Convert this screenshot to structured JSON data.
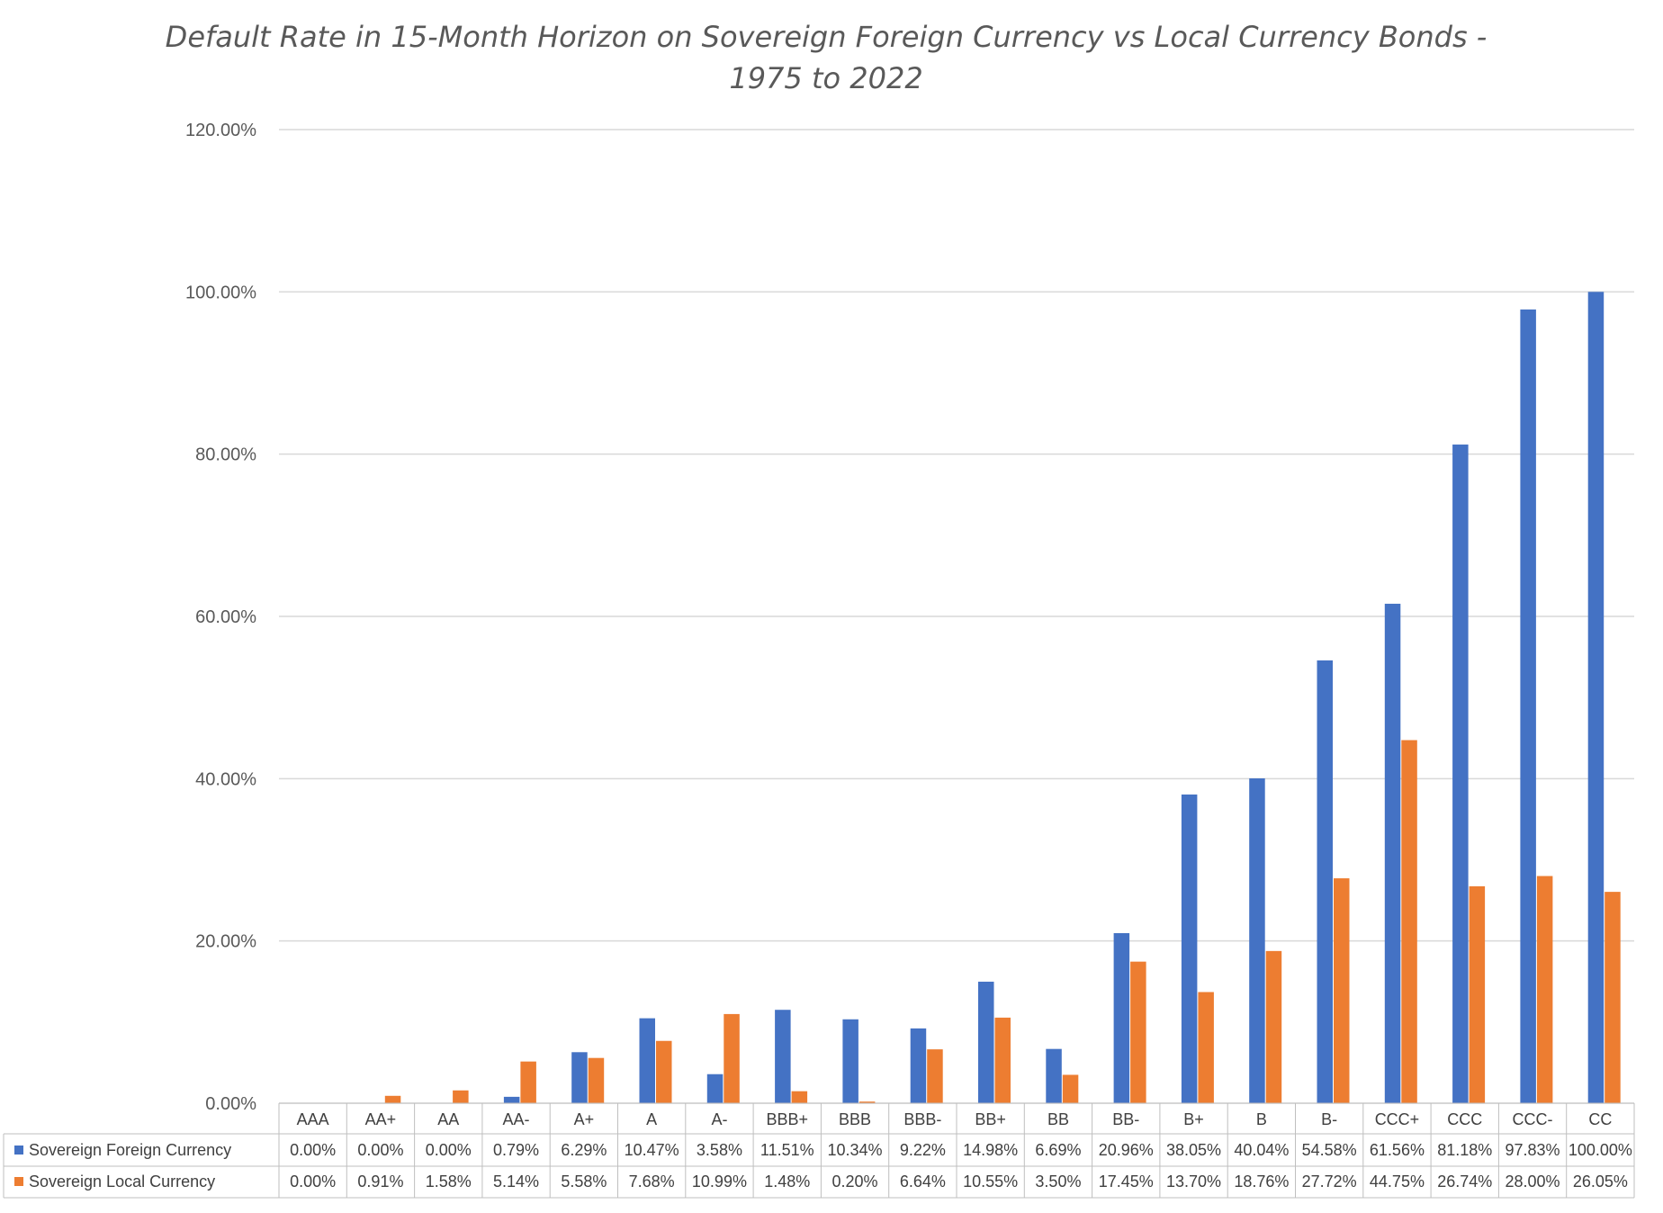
{
  "chart_data": {
    "type": "bar",
    "title_lines": [
      "Default Rate in 15-Month Horizon  on Sovereign Foreign Currency vs Local Currency Bonds -",
      "1975 to 2022"
    ],
    "categories": [
      "AAA",
      "AA+",
      "AA",
      "AA-",
      "A+",
      "A",
      "A-",
      "BBB+",
      "BBB",
      "BBB-",
      "BB+",
      "BB",
      "BB-",
      "B+",
      "B",
      "B-",
      "CCC+",
      "CCC",
      "CCC-",
      "CC"
    ],
    "series": [
      {
        "name": "Sovereign Foreign Currency",
        "color": "#4472C4",
        "values": [
          0.0,
          0.0,
          0.0,
          0.79,
          6.29,
          10.47,
          3.58,
          11.51,
          10.34,
          9.22,
          14.98,
          6.69,
          20.96,
          38.05,
          40.04,
          54.58,
          61.56,
          81.18,
          97.83,
          100.0
        ],
        "labels": [
          "0.00%",
          "0.00%",
          "0.00%",
          "0.79%",
          "6.29%",
          "10.47%",
          "3.58%",
          "11.51%",
          "10.34%",
          "9.22%",
          "14.98%",
          "6.69%",
          "20.96%",
          "38.05%",
          "40.04%",
          "54.58%",
          "61.56%",
          "81.18%",
          "97.83%",
          "100.00%"
        ]
      },
      {
        "name": "Sovereign Local Currency",
        "color": "#ED7D31",
        "values": [
          0.0,
          0.91,
          1.58,
          5.14,
          5.58,
          7.68,
          10.99,
          1.48,
          0.2,
          6.64,
          10.55,
          3.5,
          17.45,
          13.7,
          18.76,
          27.72,
          44.75,
          26.74,
          28.0,
          26.05
        ],
        "labels": [
          "0.00%",
          "0.91%",
          "1.58%",
          "5.14%",
          "5.58%",
          "7.68%",
          "10.99%",
          "1.48%",
          "0.20%",
          "6.64%",
          "10.55%",
          "3.50%",
          "17.45%",
          "13.70%",
          "18.76%",
          "27.72%",
          "44.75%",
          "26.74%",
          "28.00%",
          "26.05%"
        ]
      }
    ],
    "ylim": [
      0,
      120
    ],
    "yticks": [
      0,
      20,
      40,
      60,
      80,
      100,
      120
    ],
    "ytick_labels": [
      "0.00%",
      "20.00%",
      "40.00%",
      "60.00%",
      "80.00%",
      "100.00%",
      "120.00%"
    ],
    "grid": true,
    "legend": "data-table"
  }
}
